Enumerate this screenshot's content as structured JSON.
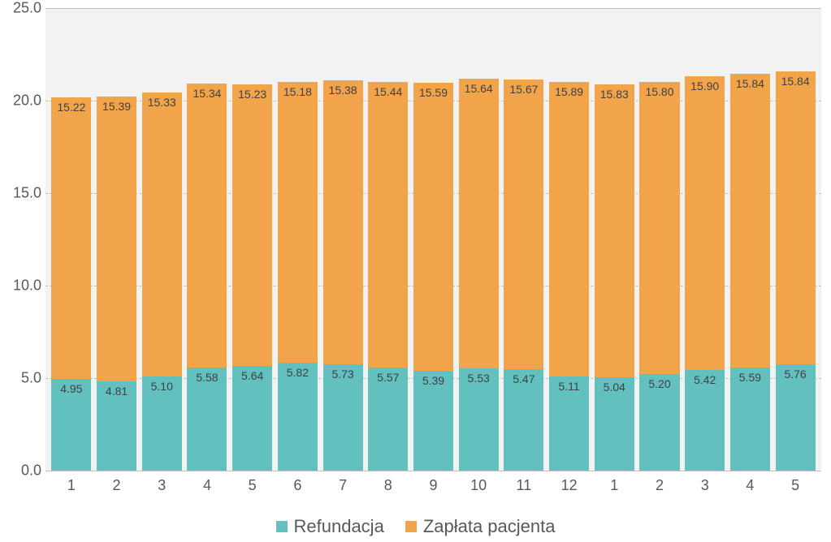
{
  "chart": {
    "type": "stacked-bar",
    "background_color": "#f2f2f2",
    "grid_color": "#bfbfbf",
    "text_color": "#595959",
    "value_label_fontsize": 14,
    "tick_label_fontsize": 18,
    "legend_fontsize": 22,
    "ylim": [
      0,
      25
    ],
    "ytick_step": 5,
    "yticks": [
      "0.0",
      "5.0",
      "10.0",
      "15.0",
      "20.0",
      "25.0"
    ],
    "categories": [
      "1",
      "2",
      "3",
      "4",
      "5",
      "6",
      "7",
      "8",
      "9",
      "10",
      "11",
      "12",
      "1",
      "2",
      "3",
      "4",
      "5"
    ],
    "series": [
      {
        "key": "refundacja",
        "label": "Refundacja",
        "color": "#62c1bf",
        "values": [
          4.95,
          4.81,
          5.1,
          5.58,
          5.64,
          5.82,
          5.73,
          5.57,
          5.39,
          5.53,
          5.47,
          5.11,
          5.04,
          5.2,
          5.42,
          5.59,
          5.76
        ],
        "labels": [
          "4.95",
          "4.81",
          "5.10",
          "5.58",
          "5.64",
          "5.82",
          "5.73",
          "5.57",
          "5.39",
          "5.53",
          "5.47",
          "5.11",
          "5.04",
          "5.20",
          "5.42",
          "5.59",
          "5.76"
        ]
      },
      {
        "key": "zaplata",
        "label": "Zapłata pacjenta",
        "color": "#f2a44b",
        "values": [
          15.22,
          15.39,
          15.33,
          15.34,
          15.23,
          15.18,
          15.38,
          15.44,
          15.59,
          15.64,
          15.67,
          15.89,
          15.83,
          15.8,
          15.9,
          15.84,
          15.84
        ],
        "labels": [
          "15.22",
          "15.39",
          "15.33",
          "15.34",
          "15.23",
          "15.18",
          "15.38",
          "15.44",
          "15.59",
          "15.64",
          "15.67",
          "15.89",
          "15.83",
          "15.80",
          "15.90",
          "15.84",
          "15.84"
        ]
      }
    ],
    "bar_width": 0.88
  }
}
